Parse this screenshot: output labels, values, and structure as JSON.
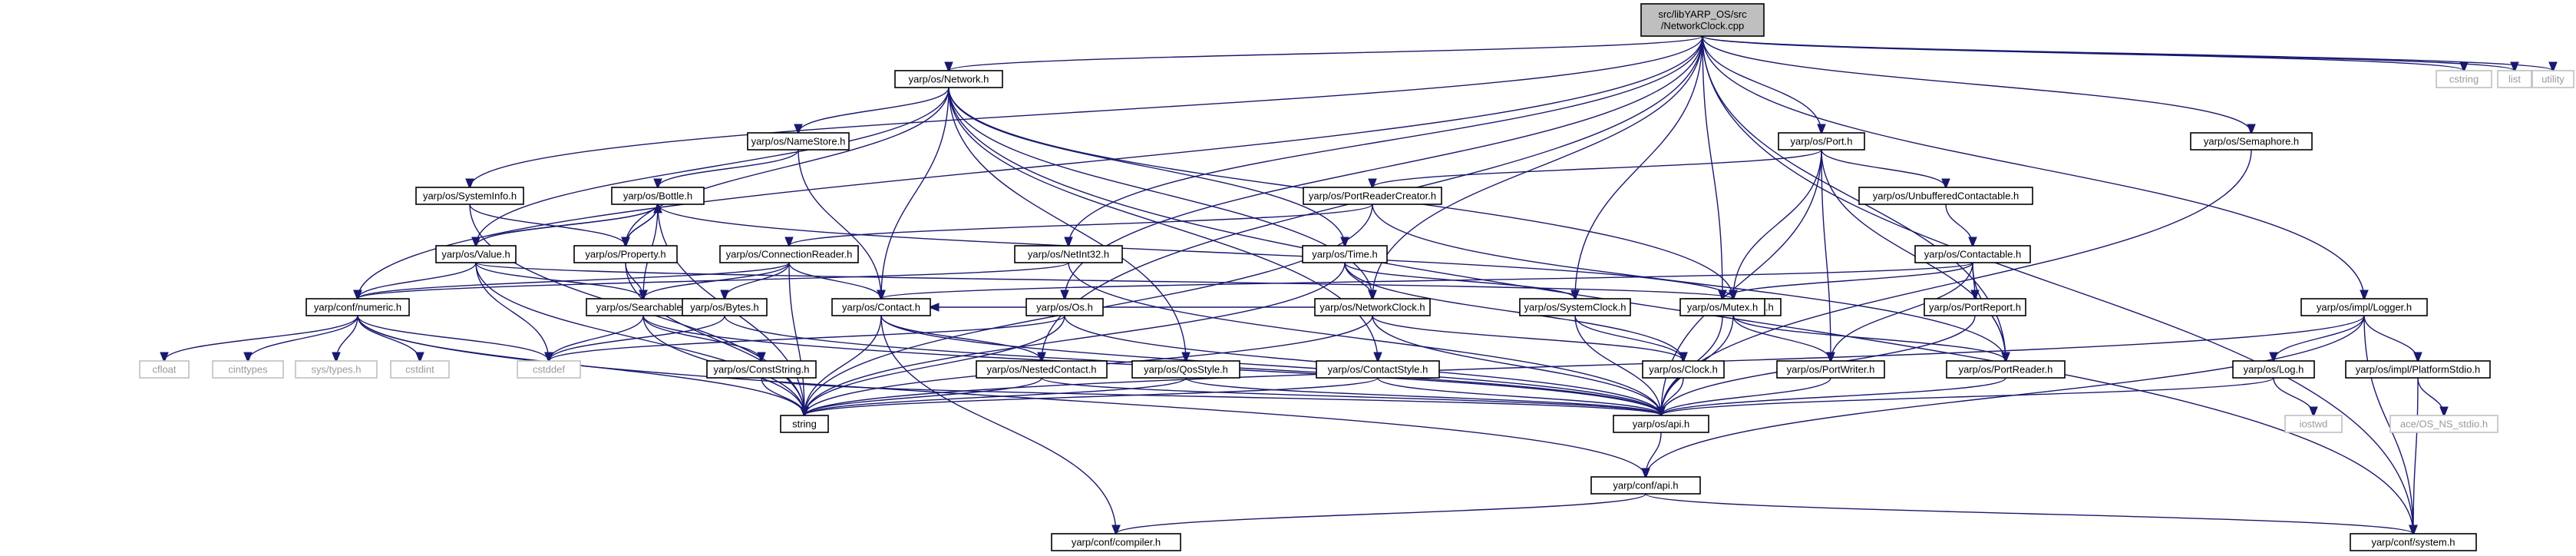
{
  "graph": {
    "title": "",
    "nodes": {
      "root": "src/libYARP_OS/src\n/NetworkClock.cpp",
      "network_h": "yarp/os/Network.h",
      "nameStore_h": "yarp/os/NameStore.h",
      "systemInfo_h": "yarp/os/SystemInfo.h",
      "bottle_h": "yarp/os/Bottle.h",
      "value_h": "yarp/os/Value.h",
      "property_h": "yarp/os/Property.h",
      "numeric_h": "yarp/conf/numeric.h",
      "searchable_h": "yarp/os/Searchable.h",
      "connectionReader_h": "yarp/os/ConnectionReader.h",
      "bytes_h": "yarp/os/Bytes.h",
      "contact_h": "yarp/os/Contact.h",
      "netInt32_h": "yarp/os/NetInt32.h",
      "time_h": "yarp/os/Time.h",
      "os_h": "yarp/os/Os.h",
      "networkClock_h": "yarp/os/NetworkClock.h",
      "systemClock_h": "yarp/os/SystemClock.h",
      "portable_h": "yarp/os/Portable.h",
      "port_h": "yarp/os/Port.h",
      "portReaderCreator_h": "yarp/os/PortReaderCreator.h",
      "unbufferedContactable_h": "yarp/os/UnbufferedContactable.h",
      "contactable_h": "yarp/os/Contactable.h",
      "mutex_h": "yarp/os/Mutex.h",
      "portReport_h": "yarp/os/PortReport.h",
      "semaphore_h": "yarp/os/Semaphore.h",
      "logger_h": "yarp/os/impl/Logger.h",
      "log_h": "yarp/os/Log.h",
      "platformStdio_h": "yarp/os/impl/PlatformStdio.h",
      "constString_h": "yarp/os/ConstString.h",
      "nestedContact_h": "yarp/os/NestedContact.h",
      "qosStyle_h": "yarp/os/QosStyle.h",
      "contactStyle_h": "yarp/os/ContactStyle.h",
      "clock_h": "yarp/os/Clock.h",
      "portWriter_h": "yarp/os/PortWriter.h",
      "portReader_h": "yarp/os/PortReader.h",
      "api_h": "yarp/os/api.h",
      "confApi_h": "yarp/conf/api.h",
      "compiler_h": "yarp/conf/compiler.h",
      "confSystem_h": "yarp/conf/system.h",
      "string": "string",
      "cstddef": "cstddef",
      "cfloat": "cfloat",
      "cinttypes": "cinttypes",
      "sysTypes_h": "sys/types.h",
      "cstdint": "cstdint",
      "cstring": "cstring",
      "list": "list",
      "utility": "utility",
      "iostwd": "iostwd",
      "aceOsNsStdio_h": "ace/OS_NS_stdio.h"
    }
  },
  "colors": {
    "edge": "#191970",
    "root_fill": "#bfbfbf",
    "system_header_border": "#bfbfbf",
    "system_header_text": "#9a9a9a"
  }
}
